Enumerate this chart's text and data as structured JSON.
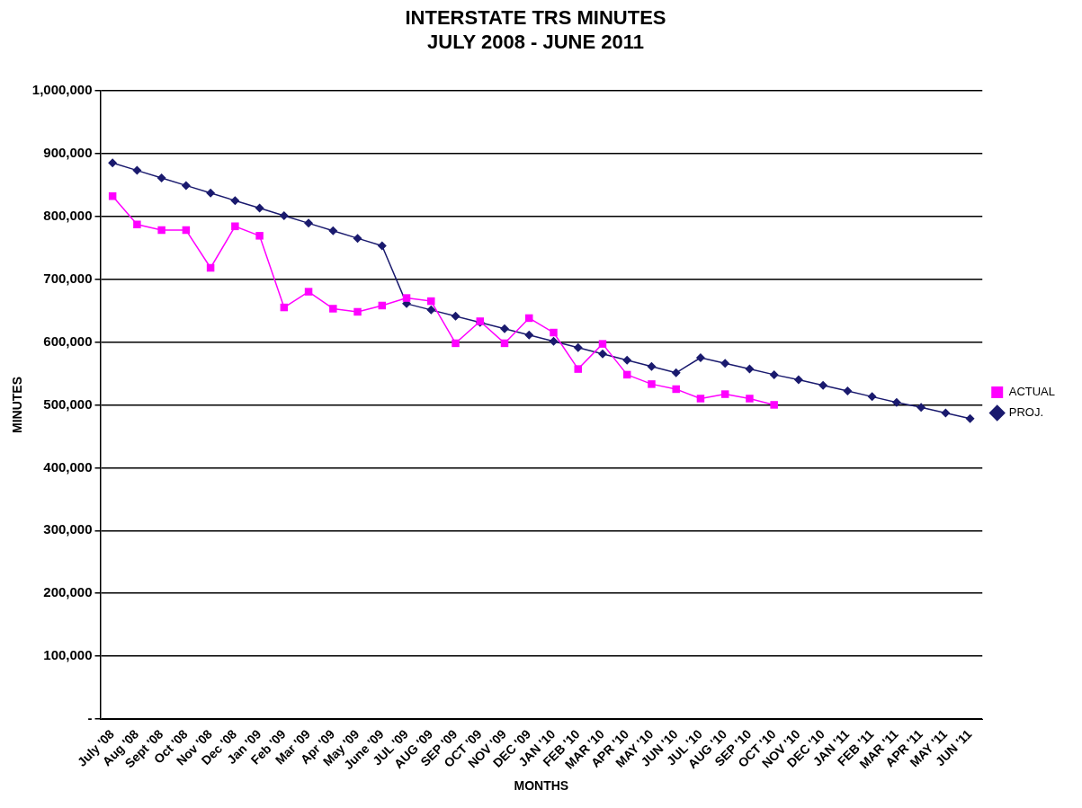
{
  "chart_data": {
    "type": "line",
    "title": "INTERSTATE TRS MINUTES",
    "subtitle": "JULY 2008 - JUNE 2011",
    "xlabel": "MONTHS",
    "ylabel": "MINUTES",
    "categories": [
      "July '08",
      "Aug '08",
      "Sept '08",
      "Oct '08",
      "Nov '08",
      "Dec '08",
      "Jan '09",
      "Feb '09",
      "Mar '09",
      "Apr '09",
      "May '09",
      "June '09",
      "JUL '09",
      "AUG '09",
      "SEP '09",
      "OCT '09",
      "NOV '09",
      "DEC '09",
      "JAN '10",
      "FEB '10",
      "MAR '10",
      "APR '10",
      "MAY '10",
      "JUN '10",
      "JUL '10",
      "AUG '10",
      "SEP '10",
      "OCT '10",
      "NOV '10",
      "DEC '10",
      "JAN '11",
      "FEB '11",
      "MAR '11",
      "APR '11",
      "MAY '11",
      "JUN '11"
    ],
    "series": [
      {
        "name": "PROJ.",
        "color": "#1a1a6e",
        "marker": "diamond",
        "values": [
          885000,
          873000,
          861000,
          849000,
          837000,
          825000,
          813000,
          801000,
          789000,
          777000,
          765000,
          753000,
          661000,
          651000,
          641000,
          631000,
          621000,
          611000,
          601000,
          591000,
          581000,
          571000,
          561000,
          551000,
          575000,
          566000,
          557000,
          548000,
          540000,
          531000,
          522000,
          513000,
          504000,
          496000,
          487000,
          478000
        ]
      },
      {
        "name": "ACTUAL",
        "color": "#ff00ff",
        "marker": "square",
        "values": [
          832000,
          787000,
          778000,
          778000,
          718000,
          784000,
          769000,
          655000,
          680000,
          653000,
          648000,
          658000,
          670000,
          665000,
          598000,
          633000,
          598000,
          638000,
          615000,
          557000,
          597000,
          548000,
          533000,
          525000,
          510000,
          517000,
          510000,
          500000,
          null,
          null,
          null,
          null,
          null,
          null,
          null,
          null
        ]
      }
    ],
    "ylim": [
      0,
      1000000
    ],
    "yticks": [
      {
        "value": 0,
        "label": "-"
      },
      {
        "value": 100000,
        "label": "100,000"
      },
      {
        "value": 200000,
        "label": "200,000"
      },
      {
        "value": 300000,
        "label": "300,000"
      },
      {
        "value": 400000,
        "label": "400,000"
      },
      {
        "value": 500000,
        "label": "500,000"
      },
      {
        "value": 600000,
        "label": "600,000"
      },
      {
        "value": 700000,
        "label": "700,000"
      },
      {
        "value": 800000,
        "label": "800,000"
      },
      {
        "value": 900000,
        "label": "900,000"
      },
      {
        "value": 1000000,
        "label": "1,000,000"
      }
    ],
    "grid": "y",
    "legend": "right",
    "line_style": "solid"
  }
}
